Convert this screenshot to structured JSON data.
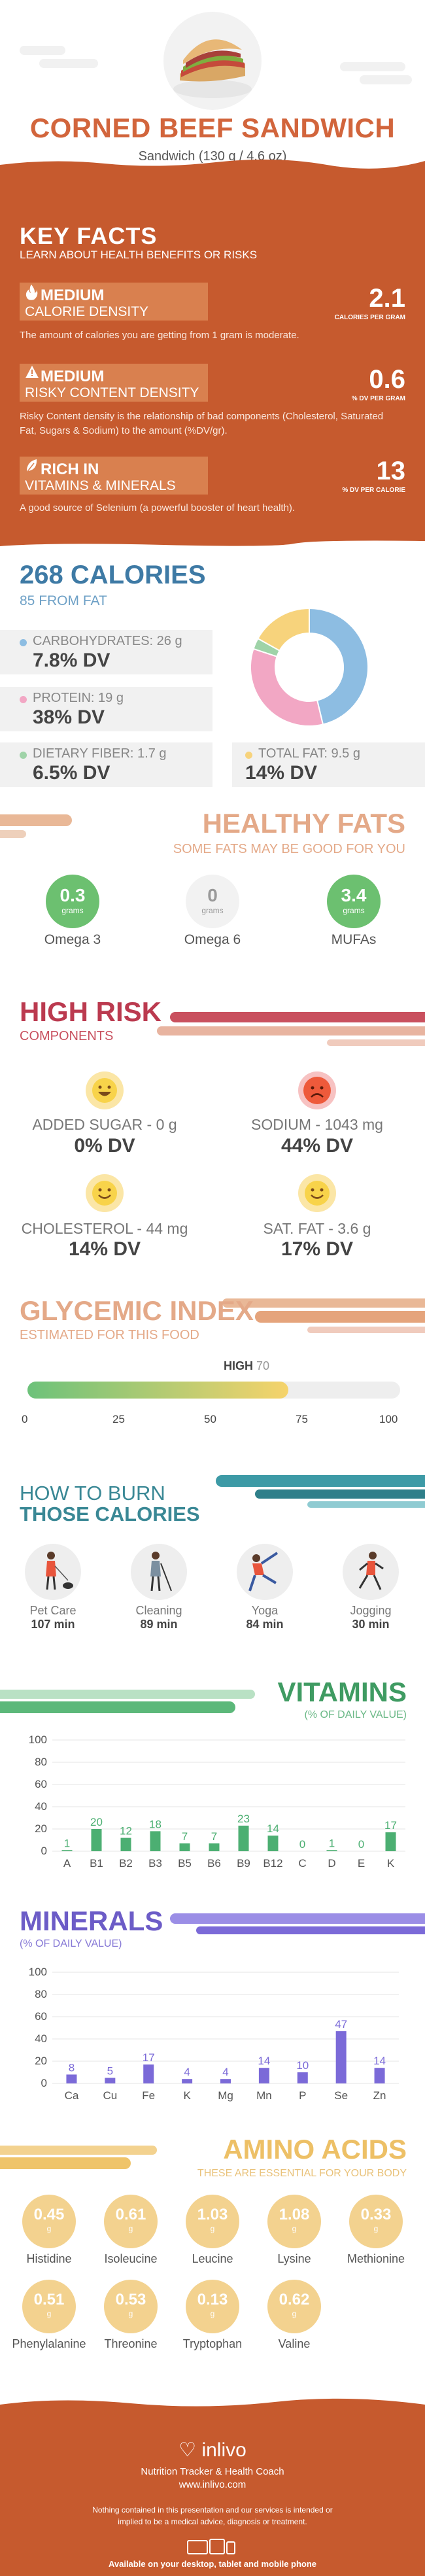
{
  "header": {
    "title": "CORNED BEEF SANDWICH",
    "subtitle": "Sandwich (130 g / 4.6 oz)"
  },
  "key_facts": {
    "title": "KEY FACTS",
    "subtitle": "LEARN ABOUT HEALTH BENEFITS OR RISKS",
    "items": [
      {
        "level": "MEDIUM",
        "label": "CALORIE DENSITY",
        "value": "2.1",
        "unit": "CALORIES PER GRAM",
        "icon": "flame-icon",
        "desc": "The amount of calories you are getting from 1 gram is moderate."
      },
      {
        "level": "MEDIUM",
        "label": "RISKY CONTENT DENSITY",
        "value": "0.6",
        "unit": "% DV PER GRAM",
        "icon": "warning-icon",
        "desc": "Risky Content density is the relationship of bad components (Cholesterol, Saturated Fat, Sugars & Sodium) to the amount (%DV/gr)."
      },
      {
        "level": "RICH  IN",
        "label": "VITAMINS & MINERALS",
        "value": "13",
        "unit": "% DV PER CALORIE",
        "icon": "leaf-icon",
        "desc": "A good source of Selenium (a powerful booster of heart health)."
      }
    ]
  },
  "calories": {
    "total": "268 CALORIES",
    "from_fat": "85 FROM FAT",
    "carbs": {
      "label": "CARBOHYDRATES: 26 g",
      "dv": "7.8% DV",
      "color": "#8dbde2"
    },
    "protein": {
      "label": "PROTEIN: 19 g",
      "dv": "38% DV",
      "color": "#f2a7c4"
    },
    "fiber": {
      "label": "DIETARY FIBER: 1.7 g",
      "dv": "6.5% DV",
      "color": "#9fd3a8"
    },
    "fat": {
      "label": "TOTAL FAT: 9.5 g",
      "dv": "14% DV",
      "color": "#f7d37c"
    },
    "donut": [
      {
        "name": "carbs",
        "value": 26,
        "color": "#8dbde2"
      },
      {
        "name": "protein",
        "value": 19,
        "color": "#f2a7c4"
      },
      {
        "name": "fiber",
        "value": 1.7,
        "color": "#9fd3a8"
      },
      {
        "name": "fat",
        "value": 9.5,
        "color": "#f7d37c"
      }
    ]
  },
  "healthy_fats": {
    "title": "HEALTHY FATS",
    "subtitle": "SOME FATS MAY BE GOOD FOR YOU",
    "unit": "grams",
    "items": [
      {
        "value": "0.3",
        "name": "Omega 3",
        "active": true
      },
      {
        "value": "0",
        "name": "Omega 6",
        "active": false
      },
      {
        "value": "3.4",
        "name": "MUFAs",
        "active": true
      }
    ]
  },
  "high_risk": {
    "title": "HIGH RISK",
    "subtitle": "COMPONENTS",
    "items": [
      {
        "label": "ADDED SUGAR - 0 g",
        "dv": "0% DV",
        "face": "grin"
      },
      {
        "label": "SODIUM - 1043 mg",
        "dv": "44% DV",
        "face": "frown"
      },
      {
        "label": "CHOLESTEROL - 44 mg",
        "dv": "14% DV",
        "face": "smile"
      },
      {
        "label": "SAT. FAT - 3.6 g",
        "dv": "17% DV",
        "face": "smile"
      }
    ]
  },
  "glycemic": {
    "title": "GLYCEMIC INDEX",
    "subtitle": "ESTIMATED FOR THIS FOOD",
    "level": "HIGH",
    "value": "70",
    "value_num": 70,
    "ticks": [
      "0",
      "25",
      "50",
      "75",
      "100"
    ]
  },
  "burn": {
    "title1": "HOW TO BURN",
    "title2": "THOSE CALORIES",
    "items": [
      {
        "name": "Pet Care",
        "time": "107 min",
        "icon": "dog-walking-icon"
      },
      {
        "name": "Cleaning",
        "time": "89 min",
        "icon": "cleaning-icon"
      },
      {
        "name": "Yoga",
        "time": "84 min",
        "icon": "yoga-icon"
      },
      {
        "name": "Jogging",
        "time": "30 min",
        "icon": "jogging-icon"
      }
    ]
  },
  "vitamins": {
    "title": "VITAMINS",
    "subtitle": "(% OF DAILY VALUE)",
    "color": "#4caf72"
  },
  "minerals": {
    "title": "MINERALS",
    "subtitle": "(% OF DAILY VALUE)",
    "color": "#7b6ad8"
  },
  "chart_data": [
    {
      "type": "bar",
      "categories": [
        "A",
        "B1",
        "B2",
        "B3",
        "B5",
        "B6",
        "B9",
        "B12",
        "C",
        "D",
        "E",
        "K"
      ],
      "values": [
        1,
        20,
        12,
        18,
        7,
        7,
        23,
        14,
        0,
        1,
        0,
        17
      ],
      "ylim": [
        0,
        100
      ],
      "yticks": [
        "0",
        "20",
        "40",
        "60",
        "80",
        "100"
      ]
    },
    {
      "type": "bar",
      "categories": [
        "Ca",
        "Cu",
        "Fe",
        "K",
        "Mg",
        "Mn",
        "P",
        "Se",
        "Zn"
      ],
      "values": [
        8,
        5,
        17,
        4,
        4,
        14,
        10,
        47,
        14
      ],
      "ylim": [
        0,
        100
      ],
      "yticks": [
        "0",
        "20",
        "40",
        "60",
        "80",
        "100"
      ]
    }
  ],
  "amino": {
    "title": "AMINO ACIDS",
    "subtitle": "THESE ARE ESSENTIAL FOR YOUR BODY",
    "unit": "g",
    "items": [
      {
        "value": "0.45",
        "name": "Histidine"
      },
      {
        "value": "0.61",
        "name": "Isoleucine"
      },
      {
        "value": "1.03",
        "name": "Leucine"
      },
      {
        "value": "1.08",
        "name": "Lysine"
      },
      {
        "value": "0.33",
        "name": "Methionine"
      },
      {
        "value": "0.51",
        "name": "Phenylalanine"
      },
      {
        "value": "0.53",
        "name": "Threonine"
      },
      {
        "value": "0.13",
        "name": "Tryptophan"
      },
      {
        "value": "0.62",
        "name": "Valine"
      }
    ]
  },
  "footer": {
    "brand": "inlivo",
    "tagline": "Nutrition Tracker & Health Coach",
    "url": "www.inlivo.com",
    "disclaimer": "Nothing contained in this presentation and our services is intended or implied to be a medical advice, diagnosis or treatment.",
    "available": "Available on your desktop, tablet and mobile phone"
  }
}
